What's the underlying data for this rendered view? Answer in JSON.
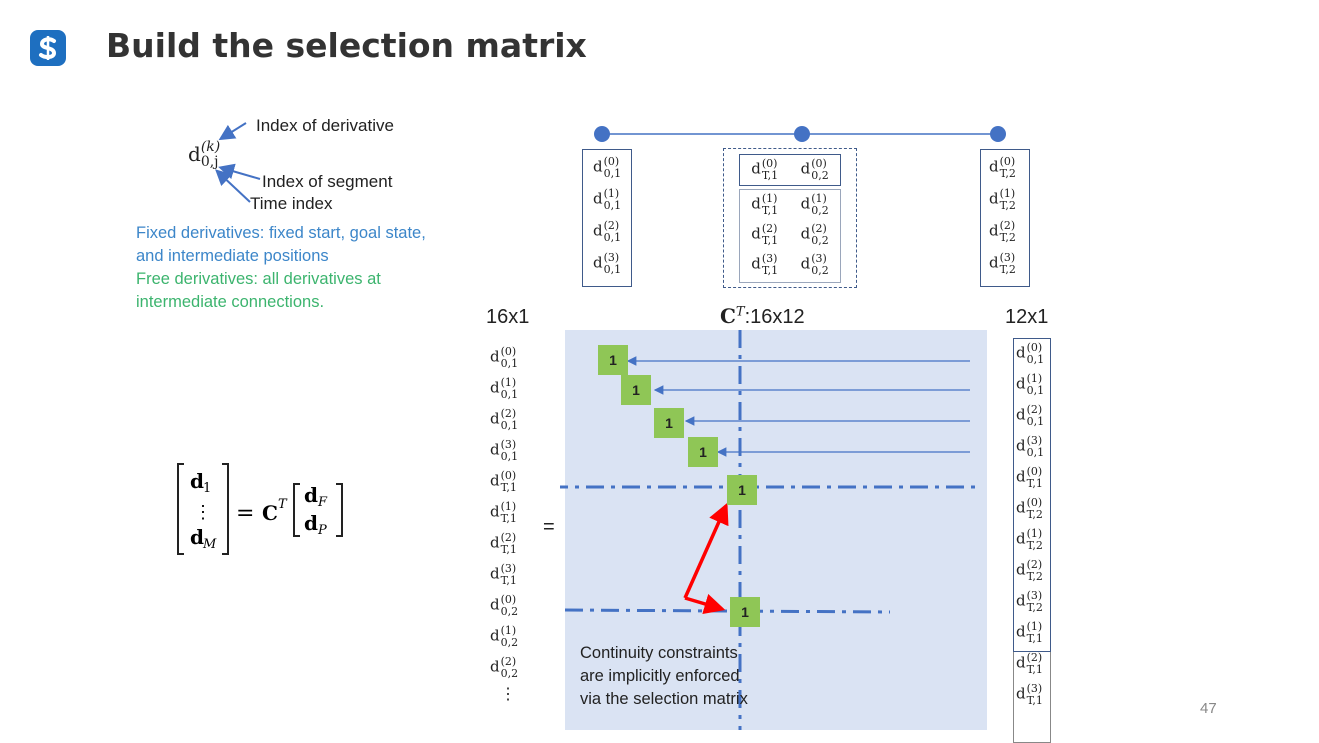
{
  "slide": {
    "title": "Build the selection matrix",
    "page_number": "47",
    "logo_icon": "dollar-s-logo-icon"
  },
  "notation": {
    "symbol_base": "d",
    "symbol_sup": "(k)",
    "symbol_sub": "0,j",
    "labels": {
      "derivative": "Index of derivative",
      "segment": "Index of segment",
      "time": "Time index"
    }
  },
  "descriptions": {
    "fixed": [
      "Fixed derivatives: fixed start, goal state,",
      "and intermediate positions"
    ],
    "free": [
      "Free derivatives: all derivatives at",
      "intermediate connections."
    ],
    "colors": {
      "fixed": "#3c86c9",
      "free": "#3cb46e"
    }
  },
  "equation": {
    "lhs_top": "d",
    "lhs_top_sub": "1",
    "lhs_dots": "⋮",
    "lhs_bottom": "d",
    "lhs_bottom_sub": "M",
    "equals": "=",
    "matrix": "C",
    "matrix_sup": "T",
    "rhs_top": "d",
    "rhs_top_sub": "F",
    "rhs_bottom": "d",
    "rhs_bottom_sub": "P"
  },
  "top_boxes": {
    "left": [
      {
        "sup": "(0)",
        "sub": "0,1"
      },
      {
        "sup": "(1)",
        "sub": "0,1"
      },
      {
        "sup": "(2)",
        "sub": "0,1"
      },
      {
        "sup": "(3)",
        "sub": "0,1"
      }
    ],
    "middle_top": [
      {
        "sup": "(0)",
        "sub": "T,1"
      },
      {
        "sup": "(0)",
        "sub": "0,2"
      }
    ],
    "middle_bottom": [
      [
        {
          "sup": "(1)",
          "sub": "T,1"
        },
        {
          "sup": "(1)",
          "sub": "0,2"
        }
      ],
      [
        {
          "sup": "(2)",
          "sub": "T,1"
        },
        {
          "sup": "(2)",
          "sub": "0,2"
        }
      ],
      [
        {
          "sup": "(3)",
          "sub": "T,1"
        },
        {
          "sup": "(3)",
          "sub": "0,2"
        }
      ]
    ],
    "right": [
      {
        "sup": "(0)",
        "sub": "T,2"
      },
      {
        "sup": "(1)",
        "sub": "T,2"
      },
      {
        "sup": "(2)",
        "sub": "T,2"
      },
      {
        "sup": "(3)",
        "sub": "T,2"
      }
    ]
  },
  "dims": {
    "left": "16x1",
    "matrix_symbol": "C",
    "matrix_sup": "T",
    "matrix": ":16x12",
    "right": "12x1"
  },
  "left_vector": [
    {
      "sup": "(0)",
      "sub": "0,1"
    },
    {
      "sup": "(1)",
      "sub": "0,1"
    },
    {
      "sup": "(2)",
      "sub": "0,1"
    },
    {
      "sup": "(3)",
      "sub": "0,1"
    },
    {
      "sup": "(0)",
      "sub": "T,1"
    },
    {
      "sup": "(1)",
      "sub": "T,1"
    },
    {
      "sup": "(2)",
      "sub": "T,1"
    },
    {
      "sup": "(3)",
      "sub": "T,1"
    },
    {
      "sup": "(0)",
      "sub": "0,2"
    },
    {
      "sup": "(1)",
      "sub": "0,2"
    },
    {
      "sup": "(2)",
      "sub": "0,2"
    }
  ],
  "left_vector_dots": "⋮",
  "equals": "=",
  "right_vector": [
    {
      "sup": "(0)",
      "sub": "0,1"
    },
    {
      "sup": "(1)",
      "sub": "0,1"
    },
    {
      "sup": "(2)",
      "sub": "0,1"
    },
    {
      "sup": "(3)",
      "sub": "0,1"
    },
    {
      "sup": "(0)",
      "sub": "T,1"
    },
    {
      "sup": "(0)",
      "sub": "T,2"
    },
    {
      "sup": "(1)",
      "sub": "T,2"
    },
    {
      "sup": "(2)",
      "sub": "T,2"
    },
    {
      "sup": "(3)",
      "sub": "T,2"
    },
    {
      "sup": "(1)",
      "sub": "T,1"
    },
    {
      "sup": "(2)",
      "sub": "T,1"
    },
    {
      "sup": "(3)",
      "sub": "T,1"
    }
  ],
  "matrix_ones": [
    "1",
    "1",
    "1",
    "1",
    "1",
    "1"
  ],
  "caption": [
    "Continuity constraints",
    "are implicitly enforced",
    "via the selection matrix"
  ],
  "colors": {
    "matrix_bg": "#dae3f3",
    "one_cell": "#8fc656",
    "arrow": "#4472c4",
    "red_arrow": "#ff0000",
    "box_border": "#3f5a8a"
  }
}
